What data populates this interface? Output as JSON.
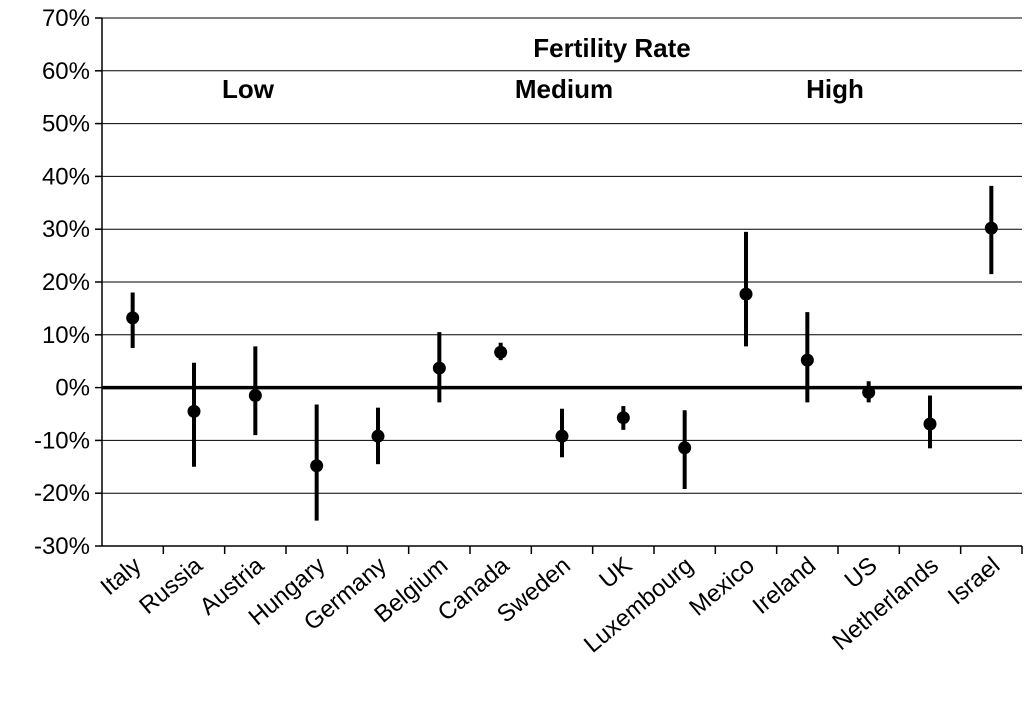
{
  "chart_data": {
    "type": "scatter",
    "title": "",
    "xlabel": "",
    "ylabel": "",
    "ylim": [
      -30,
      70
    ],
    "y_tick_labels": [
      "70%",
      "60%",
      "50%",
      "40%",
      "30%",
      "20%",
      "10%",
      "0%",
      "-10%",
      "-20%",
      "-30%"
    ],
    "y_ticks": [
      70,
      60,
      50,
      40,
      30,
      20,
      10,
      0,
      -10,
      -20,
      -30
    ],
    "grid": true,
    "categories": [
      "Italy",
      "Russia",
      "Austria",
      "Hungary",
      "Germany",
      "Belgium",
      "Canada",
      "Sweden",
      "UK",
      "Luxembourg",
      "Mexico",
      "Ireland",
      "US",
      "Netherlands",
      "Israel"
    ],
    "series": [
      {
        "values": [
          13.2,
          -4.5,
          -1.5,
          -14.8,
          -9.2,
          3.7,
          6.7,
          -9.2,
          -5.7,
          -11.4,
          17.7,
          5.2,
          -0.9,
          -6.9,
          30.2
        ],
        "lower": [
          7.5,
          -15,
          -9,
          -25.2,
          -14.5,
          -2.8,
          5.2,
          -13.2,
          -8,
          -19.2,
          7.8,
          -2.8,
          -2.8,
          -11.5,
          21.5
        ],
        "upper": [
          18,
          4.7,
          7.8,
          -3.2,
          -3.8,
          10.5,
          8.5,
          -4,
          -3.5,
          -4.3,
          29.5,
          14.3,
          1.2,
          -1.5,
          38.2
        ]
      }
    ],
    "annotations": {
      "header": "Fertility Rate",
      "groups": [
        "Low",
        "Medium",
        "High"
      ]
    }
  }
}
